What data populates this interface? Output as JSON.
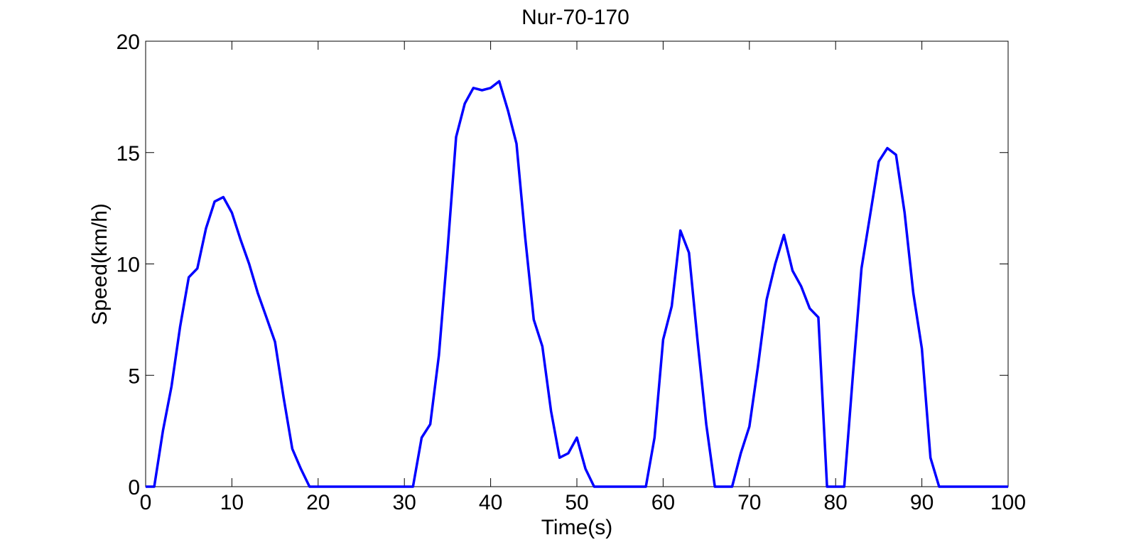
{
  "chart_data": {
    "type": "line",
    "title": "Nur-70-170",
    "xlabel": "Time(s)",
    "ylabel": "Speed(km/h)",
    "xlim": [
      0,
      100
    ],
    "ylim": [
      0,
      20
    ],
    "xticks": [
      0,
      10,
      20,
      30,
      40,
      50,
      60,
      70,
      80,
      90,
      100
    ],
    "yticks": [
      0,
      5,
      10,
      15,
      20
    ],
    "grid": false,
    "series": [
      {
        "color": "#0000ff",
        "x": [
          0,
          1,
          2,
          3,
          4,
          5,
          6,
          7,
          8,
          9,
          10,
          11,
          12,
          13,
          14,
          15,
          16,
          17,
          18,
          19,
          20,
          21,
          22,
          23,
          24,
          25,
          26,
          27,
          28,
          29,
          30,
          31,
          32,
          33,
          34,
          35,
          36,
          37,
          38,
          39,
          40,
          41,
          42,
          43,
          44,
          45,
          46,
          47,
          48,
          49,
          50,
          51,
          52,
          53,
          54,
          55,
          56,
          57,
          58,
          59,
          60,
          61,
          62,
          63,
          64,
          65,
          66,
          67,
          68,
          69,
          70,
          71,
          72,
          73,
          74,
          75,
          76,
          77,
          78,
          79,
          80,
          81,
          82,
          83,
          84,
          85,
          86,
          87,
          88,
          89,
          90,
          91,
          92,
          93,
          94,
          95,
          96,
          97,
          98,
          99,
          100
        ],
        "y": [
          0,
          0,
          2.5,
          4.5,
          7.2,
          9.4,
          9.8,
          11.6,
          12.8,
          13.0,
          12.3,
          11.1,
          10.0,
          8.7,
          7.6,
          6.5,
          4.0,
          1.7,
          0.8,
          0,
          0,
          0,
          0,
          0,
          0,
          0,
          0,
          0,
          0,
          0,
          0,
          0,
          2.2,
          2.8,
          5.9,
          10.6,
          15.7,
          17.2,
          17.9,
          17.8,
          17.9,
          18.2,
          16.9,
          15.4,
          11.2,
          7.5,
          6.3,
          3.4,
          1.3,
          1.5,
          2.2,
          0.8,
          0,
          0,
          0,
          0,
          0,
          0,
          0,
          2.2,
          6.6,
          8.1,
          11.5,
          10.5,
          6.5,
          2.8,
          0,
          0,
          0,
          1.5,
          2.7,
          5.4,
          8.4,
          10.0,
          11.3,
          9.7,
          9.0,
          8.0,
          7.6,
          0,
          0,
          0,
          5.0,
          9.8,
          12.2,
          14.6,
          15.2,
          14.9,
          12.3,
          8.7,
          6.2,
          1.3,
          0,
          0,
          0,
          0,
          0,
          0,
          0,
          0,
          0
        ]
      }
    ]
  }
}
